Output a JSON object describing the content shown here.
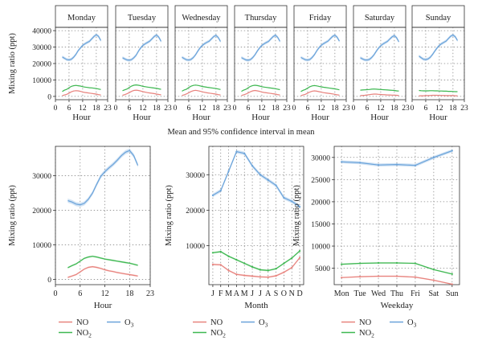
{
  "colors": {
    "NO": "#e8837e",
    "NO2": "#3fb852",
    "O3": "#6aa3da"
  },
  "legend_items": [
    {
      "key": "NO",
      "label": "NO",
      "sub": ""
    },
    {
      "key": "NO2",
      "label": "NO",
      "sub": "2"
    },
    {
      "key": "O3",
      "label": "O",
      "sub": "3"
    }
  ],
  "caption": "Mean and 95% confidence interval in mean",
  "chart_data": [
    {
      "type": "line",
      "panel": "small-multiples",
      "strip_labels": [
        "Monday",
        "Tuesday",
        "Wednesday",
        "Thursday",
        "Friday",
        "Saturday",
        "Sunday"
      ],
      "xlabel": "Hour",
      "ylabel": "Mixing ratio (ppt)",
      "xlim": [
        0,
        23
      ],
      "ylim": [
        -2000,
        42000
      ],
      "x_ticks": [
        0,
        6,
        12,
        18,
        23
      ],
      "y_ticks": [
        0,
        10000,
        20000,
        30000,
        40000
      ],
      "y_tick_labels": [
        "0",
        "10000",
        "20000",
        "30000",
        "40000"
      ],
      "x": [
        3,
        4,
        5,
        6,
        7,
        8,
        9,
        10,
        11,
        12,
        13,
        14,
        15,
        16,
        17,
        18,
        19,
        20
      ],
      "series": [
        {
          "key": "O3",
          "days": [
            [
              24000,
              23200,
              22400,
              22200,
              22600,
              23800,
              25500,
              27800,
              29500,
              31000,
              32000,
              32800,
              33500,
              35000,
              36500,
              37500,
              36500,
              34000
            ],
            [
              23500,
              22800,
              22200,
              22000,
              22400,
              23500,
              25000,
              27500,
              29500,
              31000,
              32000,
              32800,
              33600,
              35000,
              36500,
              37300,
              36000,
              33500
            ],
            [
              23800,
              23000,
              22300,
              22100,
              22500,
              23600,
              25300,
              27600,
              29600,
              31000,
              32100,
              32900,
              33600,
              35000,
              36400,
              37100,
              35800,
              33400
            ],
            [
              23600,
              22900,
              22200,
              22000,
              22400,
              23600,
              25300,
              27600,
              29500,
              31000,
              32000,
              32800,
              33500,
              35000,
              36400,
              37200,
              35900,
              33500
            ],
            [
              23700,
              23000,
              22300,
              22100,
              22500,
              23700,
              25400,
              27700,
              29600,
              31100,
              32100,
              32900,
              33700,
              35100,
              36500,
              37200,
              36000,
              33600
            ],
            [
              23500,
              22800,
              22200,
              22100,
              22500,
              23600,
              25200,
              27400,
              29300,
              30800,
              31900,
              32700,
              33500,
              34900,
              36200,
              37000,
              35700,
              33200
            ],
            [
              24500,
              23500,
              22600,
              22400,
              22800,
              23800,
              25500,
              27600,
              29500,
              31000,
              32100,
              32900,
              33700,
              35200,
              36600,
              37300,
              36300,
              34000
            ]
          ]
        },
        {
          "key": "NO2",
          "days": [
            [
              3000,
              3800,
              4300,
              5300,
              6100,
              6500,
              6700,
              6500,
              6300,
              5900,
              5700,
              5500,
              5300,
              5200,
              5000,
              4800,
              4500,
              4200
            ],
            [
              3500,
              4000,
              4500,
              5500,
              6300,
              6800,
              7000,
              6800,
              6500,
              6100,
              5900,
              5700,
              5500,
              5300,
              5100,
              4900,
              4600,
              4300
            ],
            [
              3200,
              3900,
              4400,
              5400,
              6200,
              6700,
              6900,
              6700,
              6400,
              6000,
              5800,
              5600,
              5400,
              5200,
              5000,
              4800,
              4500,
              4200
            ],
            [
              3100,
              3800,
              4300,
              5300,
              6100,
              6600,
              6800,
              6600,
              6300,
              5900,
              5700,
              5500,
              5300,
              5100,
              4900,
              4700,
              4400,
              4100
            ],
            [
              3000,
              3700,
              4200,
              5100,
              5900,
              6400,
              6600,
              6400,
              6100,
              5800,
              5600,
              5400,
              5200,
              5000,
              4800,
              4600,
              4300,
              4000
            ],
            [
              3800,
              3900,
              4000,
              4100,
              4200,
              4400,
              4500,
              4400,
              4300,
              4200,
              4100,
              4000,
              3900,
              3800,
              3700,
              3600,
              3400,
              3300
            ],
            [
              3600,
              3500,
              3400,
              3400,
              3400,
              3500,
              3500,
              3400,
              3400,
              3300,
              3300,
              3200,
              3200,
              3100,
              3100,
              3000,
              2900,
              2900
            ]
          ]
        },
        {
          "key": "NO",
          "days": [
            [
              500,
              900,
              1300,
              2000,
              2800,
              3300,
              3500,
              3400,
              3100,
              2700,
              2400,
              2200,
              2000,
              1800,
              1600,
              1400,
              1100,
              900
            ],
            [
              700,
              1100,
              1600,
              2300,
              3100,
              3600,
              3800,
              3600,
              3300,
              2900,
              2600,
              2300,
              2100,
              1900,
              1700,
              1400,
              1200,
              1000
            ],
            [
              600,
              1000,
              1500,
              2200,
              3000,
              3500,
              3700,
              3500,
              3200,
              2800,
              2500,
              2200,
              2000,
              1800,
              1600,
              1400,
              1100,
              900
            ],
            [
              600,
              1000,
              1400,
              2100,
              2900,
              3400,
              3600,
              3400,
              3100,
              2700,
              2400,
              2200,
              2000,
              1800,
              1600,
              1400,
              1100,
              900
            ],
            [
              500,
              900,
              1300,
              2000,
              2700,
              3200,
              3400,
              3200,
              2900,
              2600,
              2300,
              2100,
              1900,
              1700,
              1500,
              1300,
              1000,
              800
            ],
            [
              500,
              600,
              700,
              900,
              1100,
              1300,
              1400,
              1400,
              1300,
              1200,
              1100,
              1000,
              900,
              900,
              800,
              800,
              700,
              600
            ],
            [
              400,
              400,
              400,
              500,
              500,
              600,
              700,
              700,
              700,
              600,
              600,
              600,
              500,
              500,
              500,
              500,
              400,
              400
            ]
          ]
        }
      ]
    },
    {
      "type": "line",
      "panel": "hour",
      "xlabel": "Hour",
      "ylabel": "Mixing ratio (ppt)",
      "xlim": [
        0,
        23
      ],
      "ylim": [
        -1500,
        38500
      ],
      "x_ticks": [
        0,
        6,
        12,
        18,
        23
      ],
      "y_ticks": [
        0,
        10000,
        20000,
        30000
      ],
      "y_tick_labels": [
        "0",
        "10000",
        "20000",
        "30000"
      ],
      "x": [
        3,
        4,
        5,
        6,
        7,
        8,
        9,
        10,
        11,
        12,
        13,
        14,
        15,
        16,
        17,
        18,
        19,
        20
      ],
      "series": [
        {
          "key": "O3",
          "values": [
            22800,
            22400,
            21800,
            21600,
            22000,
            23200,
            25000,
            27500,
            29800,
            31200,
            32300,
            33300,
            34500,
            35800,
            36800,
            37300,
            35800,
            33000
          ]
        },
        {
          "key": "NO2",
          "values": [
            3400,
            4000,
            4500,
            5300,
            6100,
            6500,
            6700,
            6500,
            6200,
            5900,
            5700,
            5500,
            5300,
            5100,
            4900,
            4700,
            4400,
            4100
          ]
        },
        {
          "key": "NO",
          "values": [
            600,
            1000,
            1400,
            2200,
            3000,
            3500,
            3700,
            3500,
            3200,
            2800,
            2500,
            2300,
            2000,
            1800,
            1600,
            1400,
            1200,
            1000
          ]
        }
      ]
    },
    {
      "type": "line",
      "panel": "month",
      "xlabel": "Month",
      "ylabel": "Mixing ratio (ppt)",
      "xlim": [
        0.5,
        12.5
      ],
      "ylim": [
        -1000,
        38000
      ],
      "categories": [
        "J",
        "F",
        "M",
        "A",
        "M",
        "J",
        "J",
        "A",
        "S",
        "O",
        "N",
        "D"
      ],
      "y_ticks": [
        10000,
        20000,
        30000
      ],
      "y_tick_labels": [
        "10000",
        "20000",
        "30000"
      ],
      "series": [
        {
          "key": "O3",
          "values": [
            24200,
            25500,
            31000,
            36500,
            36000,
            32500,
            30000,
            28500,
            27000,
            23500,
            22500,
            21000
          ]
        },
        {
          "key": "NO2",
          "values": [
            8000,
            8300,
            7000,
            6000,
            5000,
            4000,
            3200,
            3000,
            3500,
            5000,
            6500,
            8500
          ]
        },
        {
          "key": "NO",
          "values": [
            4700,
            4600,
            3000,
            1900,
            1600,
            1400,
            1200,
            1100,
            1500,
            2500,
            3800,
            6600
          ]
        }
      ]
    },
    {
      "type": "line",
      "panel": "weekday",
      "xlabel": "Weekday",
      "ylabel": "Mixing ratio (ppt)",
      "xlim": [
        0.6,
        7.4
      ],
      "ylim": [
        1300,
        32500
      ],
      "categories": [
        "Mon",
        "Tue",
        "Wed",
        "Thu",
        "Fri",
        "Sat",
        "Sun"
      ],
      "y_ticks": [
        5000,
        10000,
        15000,
        20000,
        25000,
        30000
      ],
      "y_tick_labels": [
        "5000",
        "10000",
        "15000",
        "20000",
        "25000",
        "30000"
      ],
      "series": [
        {
          "key": "O3",
          "values": [
            29000,
            28800,
            28300,
            28400,
            28200,
            30000,
            31500
          ]
        },
        {
          "key": "NO2",
          "values": [
            5900,
            6100,
            6200,
            6200,
            6100,
            4700,
            3700
          ]
        },
        {
          "key": "NO",
          "values": [
            2900,
            3100,
            3200,
            3200,
            3000,
            2300,
            1400
          ]
        }
      ]
    }
  ]
}
